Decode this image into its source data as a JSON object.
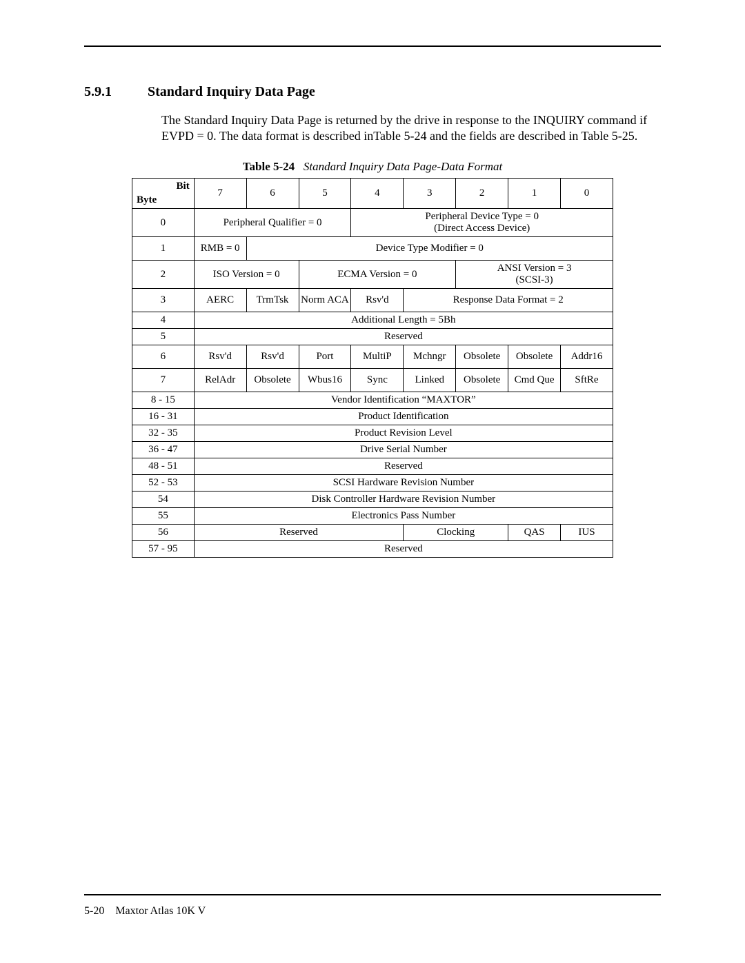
{
  "section": {
    "number": "5.9.1",
    "title": "Standard Inquiry Data Page",
    "paragraph": "The Standard Inquiry Data Page is returned by the drive in response to the INQUIRY command if EVPD = 0. The data format is described inTable 5-24 and the fields are described in Table 5-25."
  },
  "table": {
    "label": "Table 5-24",
    "title": "Standard Inquiry Data Page-Data Format",
    "corner_bit": "Bit",
    "corner_byte": "Byte",
    "bit_headers": [
      "7",
      "6",
      "5",
      "4",
      "3",
      "2",
      "1",
      "0"
    ],
    "rows": [
      {
        "byte": "0",
        "cells": [
          {
            "span": 3,
            "text": "Peripheral Qualifier = 0"
          },
          {
            "span": 5,
            "text": "Peripheral Device Type = 0\n(Direct Access Device)"
          }
        ]
      },
      {
        "byte": "1",
        "cells": [
          {
            "span": 1,
            "text": "RMB = 0"
          },
          {
            "span": 7,
            "text": "Device Type Modifier = 0"
          }
        ]
      },
      {
        "byte": "2",
        "cells": [
          {
            "span": 2,
            "text": "ISO Version = 0"
          },
          {
            "span": 3,
            "text": "ECMA Version = 0"
          },
          {
            "span": 3,
            "text": "ANSI Version = 3\n(SCSI-3)"
          }
        ]
      },
      {
        "byte": "3",
        "cells": [
          {
            "span": 1,
            "text": "AERC"
          },
          {
            "span": 1,
            "text": "TrmTsk"
          },
          {
            "span": 1,
            "text": "Norm ACA"
          },
          {
            "span": 1,
            "text": "Rsv'd"
          },
          {
            "span": 4,
            "text": "Response Data Format = 2"
          }
        ]
      },
      {
        "byte": "4",
        "cells": [
          {
            "span": 8,
            "text": "Additional Length = 5Bh"
          }
        ]
      },
      {
        "byte": "5",
        "cells": [
          {
            "span": 8,
            "text": "Reserved"
          }
        ]
      },
      {
        "byte": "6",
        "cells": [
          {
            "span": 1,
            "text": "Rsv'd"
          },
          {
            "span": 1,
            "text": "Rsv'd"
          },
          {
            "span": 1,
            "text": "Port"
          },
          {
            "span": 1,
            "text": "MultiP"
          },
          {
            "span": 1,
            "text": "Mchngr"
          },
          {
            "span": 1,
            "text": "Obsolete"
          },
          {
            "span": 1,
            "text": "Obsolete"
          },
          {
            "span": 1,
            "text": "Addr16"
          }
        ]
      },
      {
        "byte": "7",
        "cells": [
          {
            "span": 1,
            "text": "RelAdr"
          },
          {
            "span": 1,
            "text": "Obsolete"
          },
          {
            "span": 1,
            "text": "Wbus16"
          },
          {
            "span": 1,
            "text": "Sync"
          },
          {
            "span": 1,
            "text": "Linked"
          },
          {
            "span": 1,
            "text": "Obsolete"
          },
          {
            "span": 1,
            "text": "Cmd Que"
          },
          {
            "span": 1,
            "text": "SftRe"
          }
        ]
      },
      {
        "byte": "8 - 15",
        "cells": [
          {
            "span": 8,
            "text": "Vendor Identification “MAXTOR”"
          }
        ]
      },
      {
        "byte": "16 - 31",
        "cells": [
          {
            "span": 8,
            "text": "Product Identification"
          }
        ]
      },
      {
        "byte": "32 - 35",
        "cells": [
          {
            "span": 8,
            "text": "Product Revision Level"
          }
        ]
      },
      {
        "byte": "36 - 47",
        "cells": [
          {
            "span": 8,
            "text": "Drive Serial Number"
          }
        ]
      },
      {
        "byte": "48 - 51",
        "cells": [
          {
            "span": 8,
            "text": "Reserved"
          }
        ]
      },
      {
        "byte": "52 - 53",
        "cells": [
          {
            "span": 8,
            "text": "SCSI Hardware Revision Number"
          }
        ]
      },
      {
        "byte": "54",
        "cells": [
          {
            "span": 8,
            "text": "Disk Controller Hardware Revision Number"
          }
        ]
      },
      {
        "byte": "55",
        "cells": [
          {
            "span": 8,
            "text": "Electronics Pass Number"
          }
        ]
      },
      {
        "byte": "56",
        "cells": [
          {
            "span": 4,
            "text": "Reserved"
          },
          {
            "span": 2,
            "text": "Clocking"
          },
          {
            "span": 1,
            "text": "QAS"
          },
          {
            "span": 1,
            "text": "IUS"
          }
        ]
      },
      {
        "byte": "57 - 95",
        "cells": [
          {
            "span": 8,
            "text": "Reserved"
          }
        ]
      }
    ]
  },
  "footer": {
    "page": "5-20",
    "doc": "Maxtor Atlas 10K V"
  }
}
